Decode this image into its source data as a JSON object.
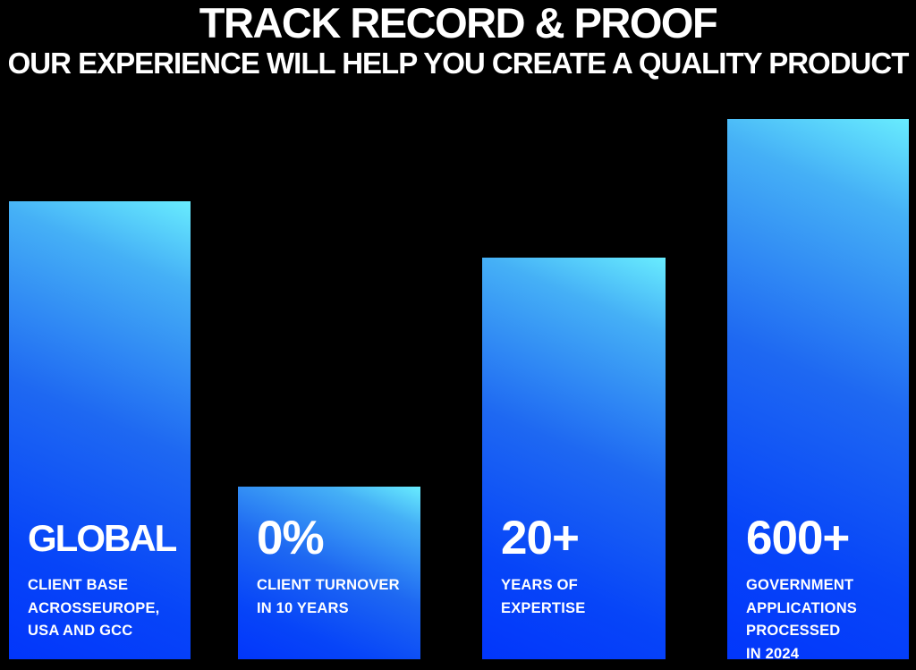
{
  "page": {
    "background_color": "#000000",
    "text_color": "#FFFFFF"
  },
  "header": {
    "title": "TRACK RECORD & PROOF",
    "subtitle": "OUR EXPERIENCE WILL HELP YOU CREATE A QUALITY PRODUCT"
  },
  "chart_data": {
    "type": "bar",
    "title": "TRACK RECORD & PROOF",
    "subtitle": "OUR EXPERIENCE WILL HELP YOU CREATE A QUALITY PRODUCT",
    "axes_shown": false,
    "grid": false,
    "legend": false,
    "background": "#000000",
    "bar_gradient_top": "#68ECFE",
    "bar_gradient_bottom": "#0236FB",
    "label_color": "#FFFFFF",
    "categories": [
      "GLOBAL",
      "0%",
      "20+",
      "600+"
    ],
    "relative_heights": [
      0.85,
      0.32,
      0.74,
      1.0
    ],
    "bars": [
      {
        "value": "GLOBAL",
        "description": "CLIENT BASE\nACROSSEUROPE,\nUSA AND GCC",
        "relative_height": 0.85
      },
      {
        "value": "0%",
        "description": "CLIENT TURNOVER\nIN 10 YEARS",
        "relative_height": 0.32
      },
      {
        "value": "20+",
        "description": "YEARS OF\nEXPERTISE",
        "relative_height": 0.74
      },
      {
        "value": "600+",
        "description": "GOVERNMENT\nAPPLICATIONS\nPROCESSED\nIN 2024",
        "relative_height": 1.0
      }
    ]
  }
}
